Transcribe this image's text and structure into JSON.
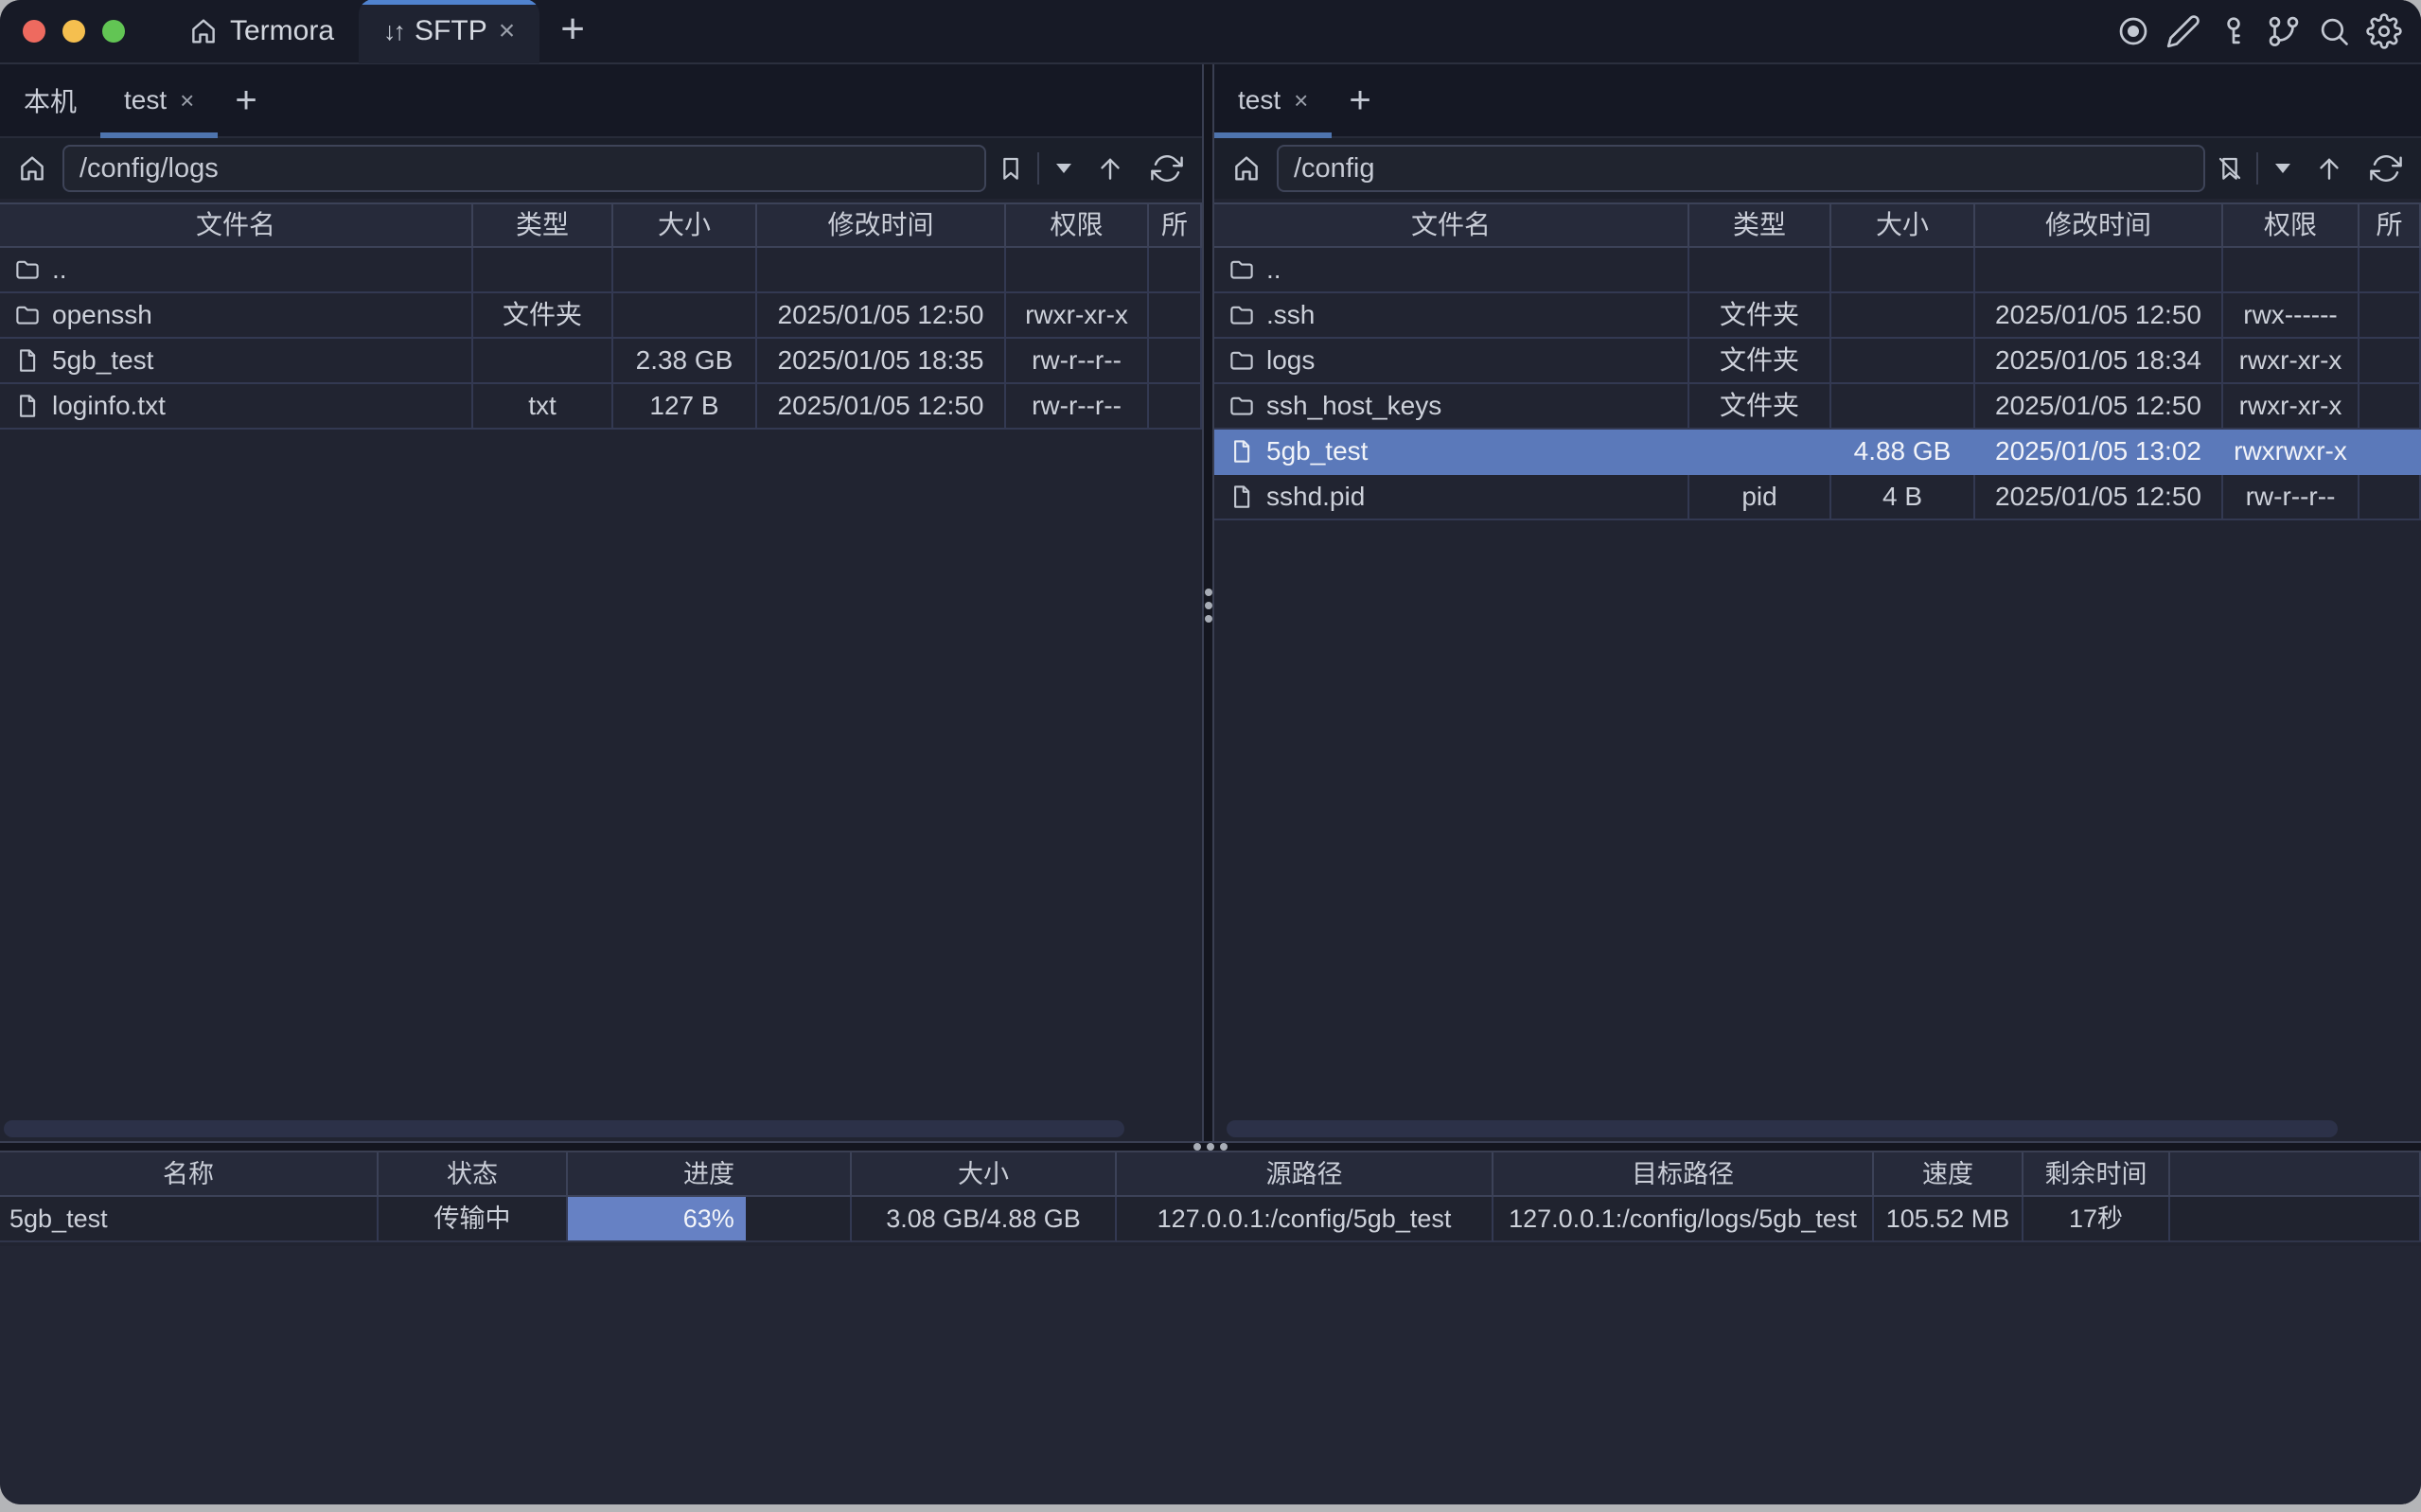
{
  "window": {
    "app_tab": "Termora",
    "sftp_tab": "SFTP",
    "transfer_glyph": "↓↑",
    "close_glyph": "×",
    "add_glyph": "+",
    "toolbar_icons": [
      "record",
      "edit",
      "key",
      "branch",
      "search",
      "settings"
    ]
  },
  "left_panel": {
    "tabs": {
      "local": "本机",
      "session": "test"
    },
    "path": "/config/logs",
    "columns": [
      "文件名",
      "类型",
      "大小",
      "修改时间",
      "权限",
      "所"
    ],
    "rows": [
      {
        "name": "..",
        "kind": "folder",
        "type": "",
        "size": "",
        "modified": "",
        "permissions": ""
      },
      {
        "name": "openssh",
        "kind": "folder",
        "type": "文件夹",
        "size": "",
        "modified": "2025/01/05 12:50",
        "permissions": "rwxr-xr-x"
      },
      {
        "name": "5gb_test",
        "kind": "file",
        "type": "",
        "size": "2.38 GB",
        "modified": "2025/01/05 18:35",
        "permissions": "rw-r--r--"
      },
      {
        "name": "loginfo.txt",
        "kind": "file",
        "type": "txt",
        "size": "127 B",
        "modified": "2025/01/05 12:50",
        "permissions": "rw-r--r--"
      }
    ]
  },
  "right_panel": {
    "tabs": {
      "session": "test"
    },
    "path": "/config",
    "columns": [
      "文件名",
      "类型",
      "大小",
      "修改时间",
      "权限",
      "所"
    ],
    "rows": [
      {
        "name": "..",
        "kind": "folder",
        "type": "",
        "size": "",
        "modified": "",
        "permissions": ""
      },
      {
        "name": ".ssh",
        "kind": "folder",
        "type": "文件夹",
        "size": "",
        "modified": "2025/01/05 12:50",
        "permissions": "rwx------"
      },
      {
        "name": "logs",
        "kind": "folder",
        "type": "文件夹",
        "size": "",
        "modified": "2025/01/05 18:34",
        "permissions": "rwxr-xr-x"
      },
      {
        "name": "ssh_host_keys",
        "kind": "folder",
        "type": "文件夹",
        "size": "",
        "modified": "2025/01/05 12:50",
        "permissions": "rwxr-xr-x"
      },
      {
        "name": "5gb_test",
        "kind": "file",
        "type": "",
        "size": "4.88 GB",
        "modified": "2025/01/05 13:02",
        "permissions": "rwxrwxr-x",
        "selected": true
      },
      {
        "name": "sshd.pid",
        "kind": "file",
        "type": "pid",
        "size": "4 B",
        "modified": "2025/01/05 12:50",
        "permissions": "rw-r--r--"
      }
    ]
  },
  "transfer_panel": {
    "columns": [
      "名称",
      "状态",
      "进度",
      "大小",
      "源路径",
      "目标路径",
      "速度",
      "剩余时间"
    ],
    "rows": [
      {
        "name": "5gb_test",
        "status": "传输中",
        "progress_label": "63%",
        "progress_pct": 63,
        "size": "3.08 GB/4.88 GB",
        "source": "127.0.0.1:/config/5gb_test",
        "target": "127.0.0.1:/config/logs/5gb_test",
        "speed": "105.52 MB",
        "remaining": "17秒"
      }
    ]
  },
  "colors": {
    "accent": "#5083cf",
    "underline": "#4e74ae",
    "selection": "#5b79ba",
    "progress": "#6681c4",
    "light_red": "#ee6a5f",
    "light_yellow": "#f5bf4f",
    "light_green": "#62c554"
  }
}
